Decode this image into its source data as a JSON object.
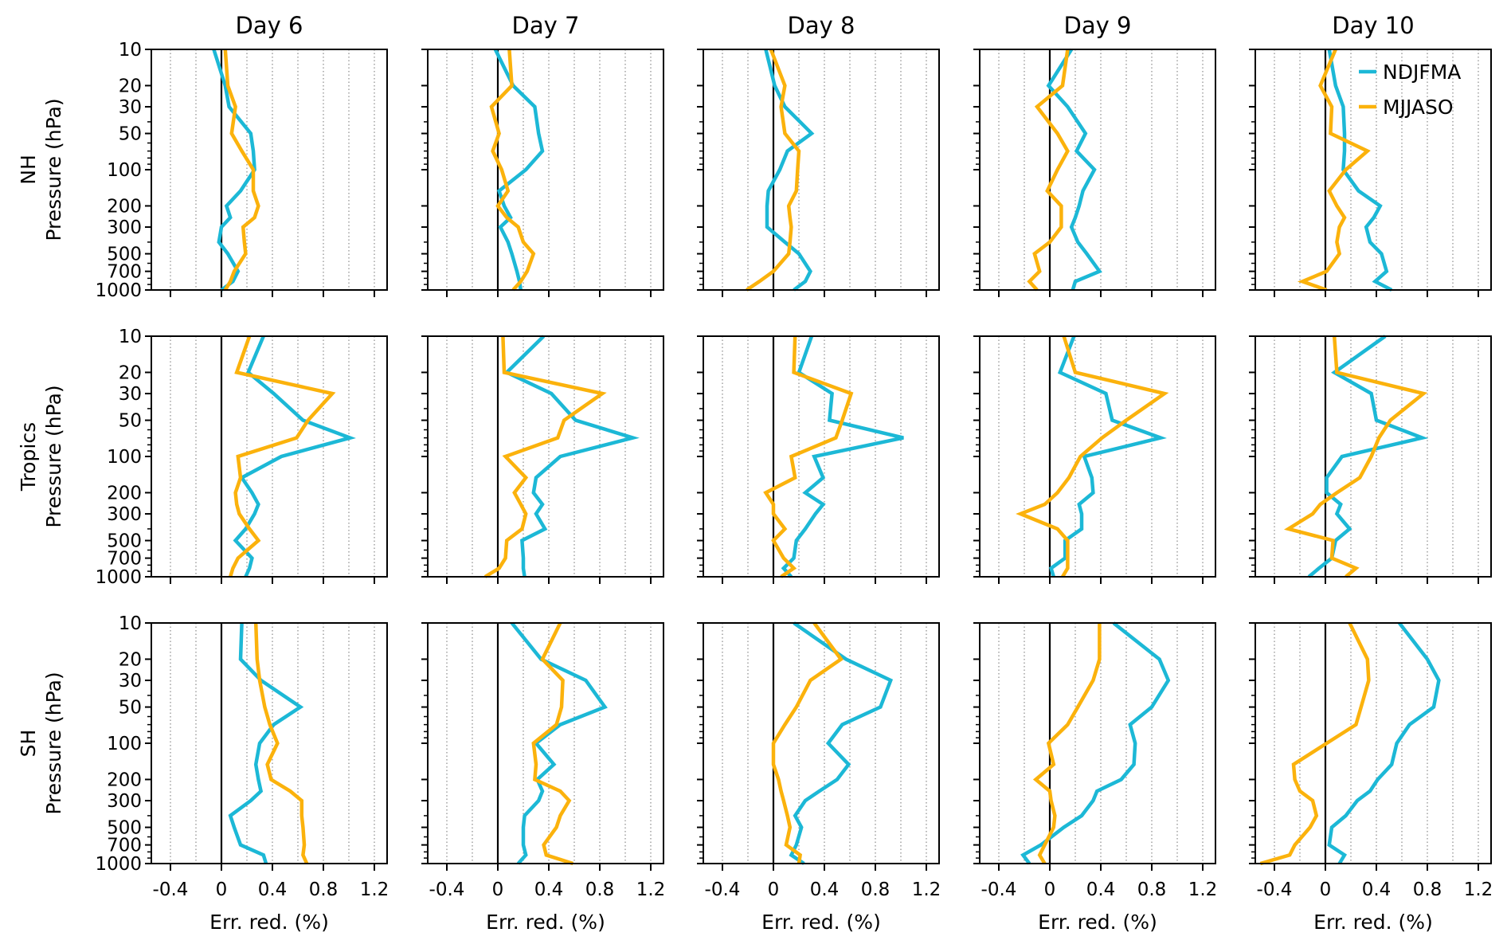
{
  "chart_data": {
    "type": "line",
    "layout": "3x5 small multiples (rows = regions, columns = forecast days)",
    "pressure_levels_hPa": [
      10,
      20,
      30,
      50,
      70,
      100,
      150,
      200,
      250,
      300,
      400,
      500,
      700,
      850,
      1000
    ],
    "yaxis": {
      "label": "Pressure (hPa)",
      "scale": "log",
      "inverted": true,
      "ylim": [
        1000,
        10
      ],
      "tick_labels": [
        "10",
        "20",
        "30",
        "50",
        "100",
        "200",
        "300",
        "500",
        "700",
        "1000"
      ],
      "tick_values": [
        10,
        20,
        30,
        50,
        100,
        200,
        300,
        500,
        700,
        1000
      ]
    },
    "xaxis": {
      "label": "Err. red. (%)",
      "xlim": [
        -0.55,
        1.3
      ],
      "tick_labels": [
        "-0.4",
        "0",
        "0.4",
        "0.8",
        "1.2"
      ],
      "tick_values": [
        -0.4,
        0,
        0.4,
        0.8,
        1.2
      ],
      "grid": "vertical dotted lines every 0.2",
      "zero_line": true
    },
    "columns": [
      "Day 6",
      "Day 7",
      "Day 8",
      "Day 9",
      "Day 10"
    ],
    "rows": [
      "NH",
      "Tropics",
      "SH"
    ],
    "legend": {
      "placement": "top-right of Day 10 NH panel",
      "entries": [
        {
          "name": "NDJFMA",
          "color": "#1cb8d6"
        },
        {
          "name": "MJJASO",
          "color": "#fbb20c"
        }
      ]
    },
    "panels": [
      {
        "row": "NH",
        "day": "Day 6",
        "NDJFMA": [
          -0.06,
          0.03,
          0.06,
          0.23,
          0.25,
          0.26,
          0.15,
          0.04,
          0.07,
          0.0,
          -0.02,
          0.05,
          0.13,
          0.09,
          0.0
        ],
        "MJJASO": [
          0.03,
          0.05,
          0.11,
          0.08,
          0.16,
          0.25,
          0.25,
          0.29,
          0.26,
          0.17,
          0.18,
          0.19,
          0.1,
          0.07,
          0.03
        ]
      },
      {
        "row": "NH",
        "day": "Day 7",
        "NDJFMA": [
          -0.02,
          0.12,
          0.29,
          0.32,
          0.35,
          0.22,
          0.01,
          0.05,
          0.1,
          0.02,
          0.08,
          0.11,
          0.15,
          0.17,
          0.18
        ],
        "MJJASO": [
          0.09,
          0.11,
          -0.05,
          0.01,
          -0.04,
          0.03,
          0.08,
          0.0,
          0.07,
          0.16,
          0.2,
          0.28,
          0.23,
          0.18,
          0.12
        ]
      },
      {
        "row": "NH",
        "day": "Day 8",
        "NDJFMA": [
          -0.06,
          0.01,
          0.09,
          0.3,
          0.11,
          0.05,
          -0.04,
          -0.05,
          -0.05,
          -0.05,
          0.09,
          0.2,
          0.29,
          0.25,
          0.16
        ],
        "MJJASO": [
          -0.02,
          0.09,
          0.06,
          0.09,
          0.2,
          0.19,
          0.18,
          0.12,
          0.13,
          0.14,
          0.13,
          0.12,
          0.0,
          -0.11,
          -0.21
        ]
      },
      {
        "row": "NH",
        "day": "Day 9",
        "NDJFMA": [
          0.17,
          -0.01,
          0.14,
          0.28,
          0.21,
          0.35,
          0.26,
          0.23,
          0.2,
          0.17,
          0.22,
          0.29,
          0.39,
          0.2,
          0.18
        ],
        "MJJASO": [
          0.14,
          0.1,
          -0.1,
          0.06,
          0.14,
          0.06,
          -0.02,
          0.09,
          0.09,
          0.09,
          0.0,
          -0.12,
          -0.08,
          -0.16,
          -0.1
        ]
      },
      {
        "row": "NH",
        "day": "Day 10",
        "NDJFMA": [
          0.03,
          0.08,
          0.14,
          0.15,
          0.15,
          0.14,
          0.26,
          0.43,
          0.38,
          0.32,
          0.35,
          0.44,
          0.48,
          0.39,
          0.52
        ],
        "MJJASO": [
          0.08,
          -0.04,
          0.05,
          0.04,
          0.33,
          0.16,
          0.03,
          0.09,
          0.15,
          0.11,
          0.09,
          0.11,
          0.01,
          -0.18,
          0.01
        ]
      },
      {
        "row": "Tropics",
        "day": "Day 6",
        "NDJFMA": [
          0.33,
          0.21,
          0.41,
          0.64,
          1.01,
          0.47,
          0.16,
          0.24,
          0.29,
          0.26,
          0.19,
          0.11,
          0.24,
          0.22,
          0.19
        ],
        "MJJASO": [
          0.22,
          0.12,
          0.87,
          0.68,
          0.59,
          0.13,
          0.15,
          0.11,
          0.12,
          0.14,
          0.22,
          0.29,
          0.13,
          0.09,
          0.07
        ]
      },
      {
        "row": "Tropics",
        "day": "Day 7",
        "NDJFMA": [
          0.36,
          0.07,
          0.42,
          0.61,
          1.06,
          0.49,
          0.3,
          0.28,
          0.35,
          0.3,
          0.37,
          0.19,
          0.2,
          0.2,
          0.21
        ],
        "MJJASO": [
          0.04,
          0.05,
          0.82,
          0.52,
          0.47,
          0.06,
          0.22,
          0.13,
          0.18,
          0.22,
          0.19,
          0.07,
          0.06,
          0.01,
          -0.1
        ]
      },
      {
        "row": "Tropics",
        "day": "Day 8",
        "NDJFMA": [
          0.3,
          0.2,
          0.46,
          0.44,
          1.02,
          0.32,
          0.39,
          0.25,
          0.39,
          0.33,
          0.25,
          0.18,
          0.16,
          0.08,
          0.14
        ],
        "MJJASO": [
          0.17,
          0.16,
          0.61,
          0.54,
          0.49,
          0.14,
          0.17,
          -0.06,
          0.0,
          0.0,
          0.09,
          0.0,
          0.08,
          0.16,
          0.06
        ]
      },
      {
        "row": "Tropics",
        "day": "Day 9",
        "NDJFMA": [
          0.19,
          0.08,
          0.44,
          0.49,
          0.87,
          0.27,
          0.33,
          0.34,
          0.23,
          0.25,
          0.25,
          0.12,
          0.12,
          0.01,
          0.03
        ],
        "MJJASO": [
          0.11,
          0.2,
          0.9,
          0.6,
          0.41,
          0.24,
          0.15,
          0.06,
          -0.04,
          -0.23,
          0.06,
          0.14,
          0.14,
          0.14,
          0.1
        ]
      },
      {
        "row": "Tropics",
        "day": "Day 10",
        "NDJFMA": [
          0.47,
          0.07,
          0.36,
          0.4,
          0.76,
          0.13,
          0.01,
          0.01,
          0.12,
          0.09,
          0.19,
          0.08,
          0.05,
          -0.05,
          -0.13
        ],
        "MJJASO": [
          0.07,
          0.09,
          0.77,
          0.51,
          0.42,
          0.36,
          0.27,
          0.09,
          -0.04,
          -0.1,
          -0.29,
          0.06,
          0.05,
          0.24,
          0.16
        ]
      },
      {
        "row": "SH",
        "day": "Day 6",
        "NDJFMA": [
          0.16,
          0.15,
          0.31,
          0.62,
          0.41,
          0.3,
          0.27,
          0.29,
          0.31,
          0.23,
          0.07,
          0.1,
          0.15,
          0.33,
          0.35
        ],
        "MJJASO": [
          0.27,
          0.28,
          0.3,
          0.34,
          0.38,
          0.44,
          0.36,
          0.39,
          0.54,
          0.63,
          0.63,
          0.64,
          0.65,
          0.64,
          0.67
        ]
      },
      {
        "row": "SH",
        "day": "Day 7",
        "NDJFMA": [
          0.11,
          0.34,
          0.69,
          0.84,
          0.49,
          0.3,
          0.44,
          0.31,
          0.35,
          0.32,
          0.21,
          0.2,
          0.2,
          0.22,
          0.16
        ],
        "MJJASO": [
          0.49,
          0.35,
          0.51,
          0.5,
          0.46,
          0.28,
          0.3,
          0.29,
          0.49,
          0.56,
          0.49,
          0.46,
          0.36,
          0.38,
          0.59
        ]
      },
      {
        "row": "SH",
        "day": "Day 8",
        "NDJFMA": [
          0.16,
          0.57,
          0.92,
          0.84,
          0.54,
          0.43,
          0.59,
          0.5,
          0.36,
          0.25,
          0.17,
          0.22,
          0.18,
          0.14,
          0.24
        ],
        "MJJASO": [
          0.32,
          0.53,
          0.29,
          0.18,
          0.09,
          0.0,
          0.0,
          0.04,
          0.06,
          0.08,
          0.11,
          0.13,
          0.1,
          0.21,
          0.2
        ]
      },
      {
        "row": "SH",
        "day": "Day 9",
        "NDJFMA": [
          0.5,
          0.86,
          0.93,
          0.8,
          0.63,
          0.67,
          0.66,
          0.56,
          0.37,
          0.34,
          0.25,
          0.11,
          -0.07,
          -0.21,
          -0.16
        ],
        "MJJASO": [
          0.39,
          0.39,
          0.34,
          0.22,
          0.14,
          -0.01,
          0.03,
          -0.11,
          0.0,
          0.01,
          0.04,
          0.03,
          -0.04,
          -0.08,
          -0.04
        ]
      },
      {
        "row": "SH",
        "day": "Day 10",
        "NDJFMA": [
          0.58,
          0.8,
          0.89,
          0.85,
          0.66,
          0.56,
          0.52,
          0.41,
          0.35,
          0.25,
          0.16,
          0.05,
          0.03,
          0.15,
          0.11
        ],
        "MJJASO": [
          0.19,
          0.33,
          0.34,
          0.28,
          0.24,
          0.01,
          -0.25,
          -0.24,
          -0.2,
          -0.1,
          -0.07,
          -0.12,
          -0.24,
          -0.28,
          -0.51
        ]
      }
    ]
  }
}
